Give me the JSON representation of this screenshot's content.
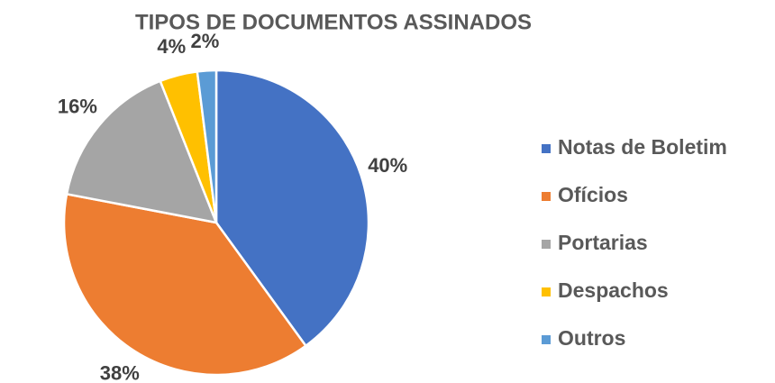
{
  "chart_data": {
    "type": "pie",
    "title": "TIPOS DE DOCUMENTOS ASSINADOS",
    "categories": [
      "Notas de Boletim",
      "Ofícios",
      "Portarias",
      "Despachos",
      "Outros"
    ],
    "values": [
      40,
      38,
      16,
      4,
      2
    ],
    "value_labels": [
      "40%",
      "38%",
      "16%",
      "4%",
      "2%"
    ],
    "colors": [
      "#4472c4",
      "#ed7d31",
      "#a5a5a5",
      "#ffc000",
      "#5b9bd5"
    ],
    "legend": "right"
  }
}
